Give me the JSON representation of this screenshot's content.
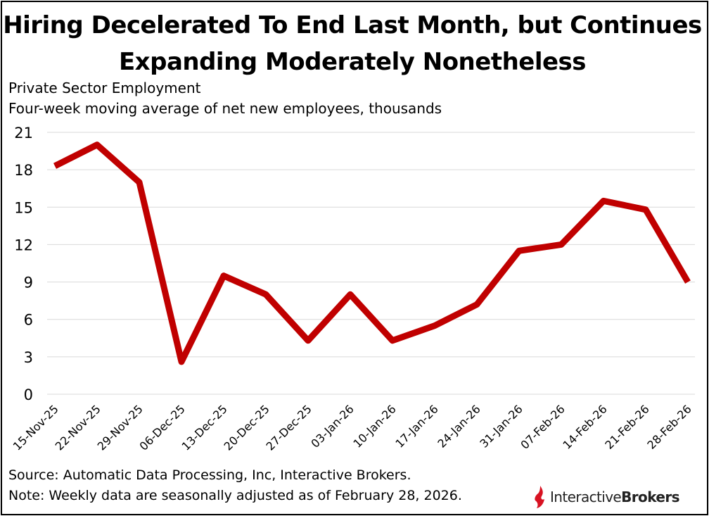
{
  "title_line1": "Hiring Decelerated To End Last Month, but Continues",
  "title_line2": "Expanding Moderately Nonetheless",
  "subtitle_line1": "Private Sector Employment",
  "subtitle_line2": "Four-week moving average of net new employees, thousands",
  "footer": {
    "source": "Source: Automatic Data Processing, Inc, Interactive Brokers.",
    "note": "Note: Weekly data are seasonally adjusted as of February 28, 2026."
  },
  "logo": {
    "word1": "Interactive",
    "word2": "Brokers",
    "mark_color": "#d81222",
    "icon": "flame-logo-icon"
  },
  "chart_data": {
    "type": "line",
    "categories": [
      "15-Nov-25",
      "22-Nov-25",
      "29-Nov-25",
      "06-Dec-25",
      "13-Dec-25",
      "20-Dec-25",
      "27-Dec-25",
      "03-Jan-26",
      "10-Jan-26",
      "17-Jan-26",
      "24-Jan-26",
      "31-Jan-26",
      "07-Feb-26",
      "14-Feb-26",
      "21-Feb-26",
      "28-Feb-26"
    ],
    "series": [
      {
        "values": [
          18.3,
          20.0,
          17.0,
          2.6,
          9.5,
          8.0,
          4.3,
          8.0,
          4.3,
          5.5,
          7.2,
          11.5,
          12.0,
          15.5,
          14.8,
          9.0
        ]
      }
    ],
    "y_ticks": [
      0,
      3,
      6,
      9,
      12,
      15,
      18,
      21
    ],
    "ylim": [
      0,
      21
    ],
    "grid": true,
    "line_color": "#c00000"
  }
}
